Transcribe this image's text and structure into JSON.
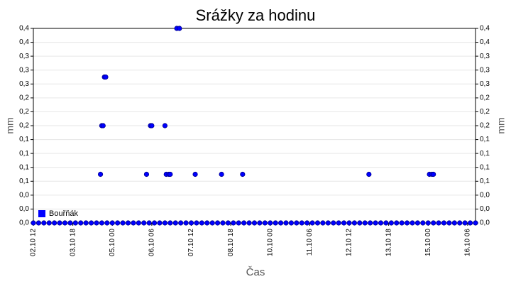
{
  "chart_data": {
    "type": "scatter",
    "title": "Srážky za hodinu",
    "x_label": "Čas",
    "y_label": "mm",
    "y2_label": "mm",
    "legend": "bottom-left",
    "grid": true,
    "xlim": [
      12,
      348
    ],
    "xticks": [
      {
        "value": 12,
        "label": "02.10 12"
      },
      {
        "value": 42,
        "label": "03.10 18"
      },
      {
        "value": 72,
        "label": "05.10 00"
      },
      {
        "value": 102,
        "label": "06.10 06"
      },
      {
        "value": 132,
        "label": "07.10 12"
      },
      {
        "value": 162,
        "label": "08.10 18"
      },
      {
        "value": 192,
        "label": "10.10 00"
      },
      {
        "value": 222,
        "label": "11.10 06"
      },
      {
        "value": 252,
        "label": "12.10 12"
      },
      {
        "value": 282,
        "label": "13.10 18"
      },
      {
        "value": 312,
        "label": "15.10 00"
      },
      {
        "value": 342,
        "label": "16.10 06"
      }
    ],
    "ylim": [
      0,
      0.4
    ],
    "yticks": [
      {
        "value": 0,
        "label": "0,0"
      },
      {
        "value": 0.0286,
        "label": "0,0"
      },
      {
        "value": 0.0571,
        "label": "0,0"
      },
      {
        "value": 0.0857,
        "label": "0,1"
      },
      {
        "value": 0.1143,
        "label": "0,1"
      },
      {
        "value": 0.1429,
        "label": "0,1"
      },
      {
        "value": 0.1714,
        "label": "0,1"
      },
      {
        "value": 0.2,
        "label": "0,2"
      },
      {
        "value": 0.2286,
        "label": "0,2"
      },
      {
        "value": 0.2571,
        "label": "0,2"
      },
      {
        "value": 0.2857,
        "label": "0,3"
      },
      {
        "value": 0.3143,
        "label": "0,3"
      },
      {
        "value": 0.3429,
        "label": "0,3"
      },
      {
        "value": 0.3714,
        "label": "0,4"
      },
      {
        "value": 0.4,
        "label": "0,4"
      }
    ],
    "series": [
      {
        "name": "Bouřňák",
        "color": "#0000ff",
        "x": [
          12,
          16,
          20,
          24,
          28,
          32,
          36,
          40,
          44,
          48,
          52,
          56,
          60,
          64,
          68,
          72,
          76,
          80,
          84,
          88,
          92,
          96,
          100,
          104,
          108,
          112,
          116,
          120,
          124,
          128,
          132,
          136,
          140,
          144,
          148,
          152,
          156,
          160,
          164,
          168,
          172,
          176,
          180,
          184,
          188,
          192,
          196,
          200,
          204,
          208,
          212,
          216,
          220,
          224,
          228,
          232,
          236,
          240,
          244,
          248,
          252,
          256,
          260,
          264,
          268,
          272,
          276,
          280,
          284,
          288,
          292,
          296,
          300,
          304,
          308,
          312,
          316,
          320,
          324,
          328,
          332,
          336,
          340,
          344,
          348,
          63,
          64,
          65,
          66,
          67,
          98,
          101,
          102,
          112,
          113,
          115,
          116,
          121,
          123,
          135,
          155,
          171,
          267,
          313,
          315,
          316
        ],
        "values": [
          0,
          0,
          0,
          0,
          0,
          0,
          0,
          0,
          0,
          0,
          0,
          0,
          0,
          0,
          0,
          0,
          0,
          0,
          0,
          0,
          0,
          0,
          0,
          0,
          0,
          0,
          0,
          0,
          0,
          0,
          0,
          0,
          0,
          0,
          0,
          0,
          0,
          0,
          0,
          0,
          0,
          0,
          0,
          0,
          0,
          0,
          0,
          0,
          0,
          0,
          0,
          0,
          0,
          0,
          0,
          0,
          0,
          0,
          0,
          0,
          0,
          0,
          0,
          0,
          0,
          0,
          0,
          0,
          0,
          0,
          0,
          0,
          0,
          0,
          0,
          0,
          0,
          0,
          0,
          0,
          0,
          0,
          0,
          0,
          0,
          0.1,
          0.2,
          0.2,
          0.3,
          0.3,
          0.1,
          0.2,
          0.2,
          0.2,
          0.1,
          0.1,
          0.1,
          0.4,
          0.4,
          0.1,
          0.1,
          0.1,
          0.1,
          0.1,
          0.1,
          0.1
        ]
      }
    ]
  }
}
